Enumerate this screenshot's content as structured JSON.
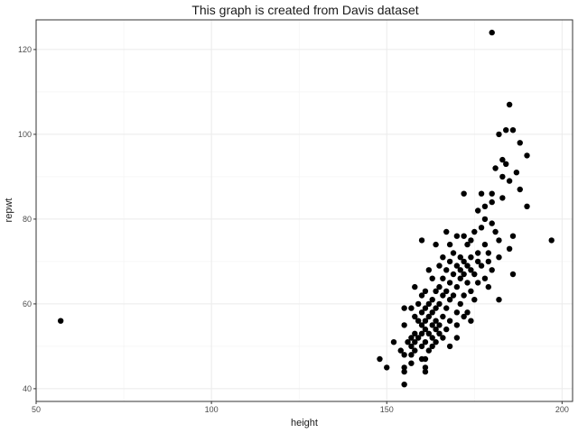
{
  "chart_data": {
    "type": "scatter",
    "title": "This graph is created from Davis dataset",
    "xlabel": "height",
    "ylabel": "repwt",
    "xlim": [
      50,
      203
    ],
    "ylim": [
      37,
      127
    ],
    "x_ticks": [
      50,
      100,
      150,
      200
    ],
    "y_ticks": [
      40,
      60,
      80,
      100,
      120
    ],
    "x_tick_labels": [
      "50",
      "100",
      "150",
      "200"
    ],
    "y_tick_labels": [
      "40",
      "60",
      "80",
      "100",
      "120"
    ],
    "grid": true,
    "theme": "bw",
    "point_color": "#000000",
    "points": [
      {
        "x": 57,
        "y": 56
      },
      {
        "x": 180,
        "y": 124
      },
      {
        "x": 185,
        "y": 107
      },
      {
        "x": 186,
        "y": 101
      },
      {
        "x": 184,
        "y": 101
      },
      {
        "x": 182,
        "y": 100
      },
      {
        "x": 188,
        "y": 98
      },
      {
        "x": 190,
        "y": 95
      },
      {
        "x": 183,
        "y": 94
      },
      {
        "x": 184,
        "y": 93
      },
      {
        "x": 181,
        "y": 92
      },
      {
        "x": 187,
        "y": 91
      },
      {
        "x": 183,
        "y": 90
      },
      {
        "x": 185,
        "y": 89
      },
      {
        "x": 188,
        "y": 87
      },
      {
        "x": 180,
        "y": 86
      },
      {
        "x": 172,
        "y": 86
      },
      {
        "x": 177,
        "y": 86
      },
      {
        "x": 183,
        "y": 85
      },
      {
        "x": 180,
        "y": 84
      },
      {
        "x": 190,
        "y": 83
      },
      {
        "x": 178,
        "y": 83
      },
      {
        "x": 176,
        "y": 82
      },
      {
        "x": 178,
        "y": 80
      },
      {
        "x": 180,
        "y": 79
      },
      {
        "x": 177,
        "y": 78
      },
      {
        "x": 167,
        "y": 77
      },
      {
        "x": 175,
        "y": 77
      },
      {
        "x": 181,
        "y": 77
      },
      {
        "x": 170,
        "y": 76
      },
      {
        "x": 172,
        "y": 76
      },
      {
        "x": 186,
        "y": 76
      },
      {
        "x": 197,
        "y": 75
      },
      {
        "x": 160,
        "y": 75
      },
      {
        "x": 174,
        "y": 75
      },
      {
        "x": 182,
        "y": 75
      },
      {
        "x": 164,
        "y": 74
      },
      {
        "x": 168,
        "y": 74
      },
      {
        "x": 173,
        "y": 74
      },
      {
        "x": 178,
        "y": 74
      },
      {
        "x": 185,
        "y": 73
      },
      {
        "x": 169,
        "y": 72
      },
      {
        "x": 176,
        "y": 72
      },
      {
        "x": 179,
        "y": 72
      },
      {
        "x": 166,
        "y": 71
      },
      {
        "x": 171,
        "y": 71
      },
      {
        "x": 174,
        "y": 71
      },
      {
        "x": 182,
        "y": 71
      },
      {
        "x": 168,
        "y": 70
      },
      {
        "x": 172,
        "y": 70
      },
      {
        "x": 176,
        "y": 70
      },
      {
        "x": 179,
        "y": 70
      },
      {
        "x": 165,
        "y": 69
      },
      {
        "x": 170,
        "y": 69
      },
      {
        "x": 173,
        "y": 69
      },
      {
        "x": 177,
        "y": 69
      },
      {
        "x": 162,
        "y": 68
      },
      {
        "x": 167,
        "y": 68
      },
      {
        "x": 171,
        "y": 68
      },
      {
        "x": 174,
        "y": 68
      },
      {
        "x": 180,
        "y": 68
      },
      {
        "x": 169,
        "y": 67
      },
      {
        "x": 172,
        "y": 67
      },
      {
        "x": 175,
        "y": 67
      },
      {
        "x": 186,
        "y": 67
      },
      {
        "x": 163,
        "y": 66
      },
      {
        "x": 166,
        "y": 66
      },
      {
        "x": 171,
        "y": 66
      },
      {
        "x": 178,
        "y": 66
      },
      {
        "x": 168,
        "y": 65
      },
      {
        "x": 173,
        "y": 65
      },
      {
        "x": 176,
        "y": 65
      },
      {
        "x": 158,
        "y": 64
      },
      {
        "x": 165,
        "y": 64
      },
      {
        "x": 170,
        "y": 64
      },
      {
        "x": 179,
        "y": 64
      },
      {
        "x": 161,
        "y": 63
      },
      {
        "x": 164,
        "y": 63
      },
      {
        "x": 167,
        "y": 63
      },
      {
        "x": 174,
        "y": 63
      },
      {
        "x": 160,
        "y": 62
      },
      {
        "x": 166,
        "y": 62
      },
      {
        "x": 169,
        "y": 62
      },
      {
        "x": 172,
        "y": 62
      },
      {
        "x": 163,
        "y": 61
      },
      {
        "x": 168,
        "y": 61
      },
      {
        "x": 175,
        "y": 61
      },
      {
        "x": 182,
        "y": 61
      },
      {
        "x": 159,
        "y": 60
      },
      {
        "x": 162,
        "y": 60
      },
      {
        "x": 165,
        "y": 60
      },
      {
        "x": 171,
        "y": 60
      },
      {
        "x": 155,
        "y": 59
      },
      {
        "x": 157,
        "y": 59
      },
      {
        "x": 161,
        "y": 59
      },
      {
        "x": 164,
        "y": 59
      },
      {
        "x": 167,
        "y": 59
      },
      {
        "x": 160,
        "y": 58
      },
      {
        "x": 163,
        "y": 58
      },
      {
        "x": 170,
        "y": 58
      },
      {
        "x": 173,
        "y": 58
      },
      {
        "x": 158,
        "y": 57
      },
      {
        "x": 162,
        "y": 57
      },
      {
        "x": 166,
        "y": 57
      },
      {
        "x": 172,
        "y": 57
      },
      {
        "x": 159,
        "y": 56
      },
      {
        "x": 161,
        "y": 56
      },
      {
        "x": 164,
        "y": 56
      },
      {
        "x": 168,
        "y": 56
      },
      {
        "x": 174,
        "y": 56
      },
      {
        "x": 155,
        "y": 55
      },
      {
        "x": 160,
        "y": 55
      },
      {
        "x": 163,
        "y": 55
      },
      {
        "x": 165,
        "y": 55
      },
      {
        "x": 170,
        "y": 55
      },
      {
        "x": 161,
        "y": 54
      },
      {
        "x": 164,
        "y": 54
      },
      {
        "x": 167,
        "y": 54
      },
      {
        "x": 158,
        "y": 53
      },
      {
        "x": 160,
        "y": 53
      },
      {
        "x": 162,
        "y": 53
      },
      {
        "x": 165,
        "y": 53
      },
      {
        "x": 157,
        "y": 52
      },
      {
        "x": 159,
        "y": 52
      },
      {
        "x": 163,
        "y": 52
      },
      {
        "x": 166,
        "y": 52
      },
      {
        "x": 170,
        "y": 52
      },
      {
        "x": 152,
        "y": 51
      },
      {
        "x": 156,
        "y": 51
      },
      {
        "x": 158,
        "y": 51
      },
      {
        "x": 161,
        "y": 51
      },
      {
        "x": 164,
        "y": 51
      },
      {
        "x": 157,
        "y": 50
      },
      {
        "x": 160,
        "y": 50
      },
      {
        "x": 163,
        "y": 50
      },
      {
        "x": 168,
        "y": 50
      },
      {
        "x": 154,
        "y": 49
      },
      {
        "x": 158,
        "y": 49
      },
      {
        "x": 162,
        "y": 49
      },
      {
        "x": 155,
        "y": 48
      },
      {
        "x": 157,
        "y": 48
      },
      {
        "x": 148,
        "y": 47
      },
      {
        "x": 160,
        "y": 47
      },
      {
        "x": 161,
        "y": 47
      },
      {
        "x": 157,
        "y": 46
      },
      {
        "x": 150,
        "y": 45
      },
      {
        "x": 155,
        "y": 45
      },
      {
        "x": 161,
        "y": 45
      },
      {
        "x": 155,
        "y": 44
      },
      {
        "x": 161,
        "y": 44
      },
      {
        "x": 155,
        "y": 41
      }
    ]
  }
}
